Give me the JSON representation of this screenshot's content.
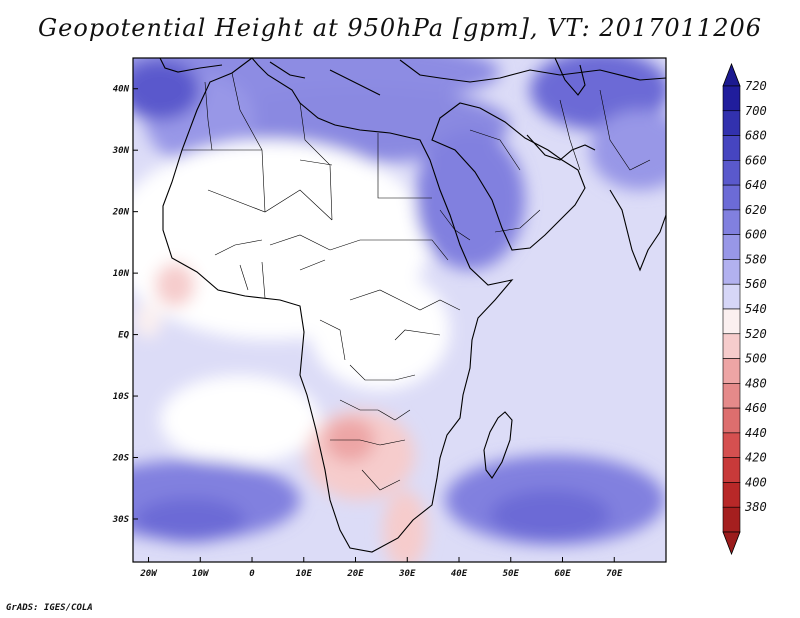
{
  "title": "Geopotential Height at 950hPa [gpm], VT: 2017011206",
  "credit": "GrADS: IGES/COLA",
  "map": {
    "region": "Africa and Middle East",
    "lon_range": [
      -23,
      80
    ],
    "lat_range": [
      -37,
      45
    ],
    "lon_ticks": [
      {
        "value": -20,
        "label": "20W"
      },
      {
        "value": -10,
        "label": "10W"
      },
      {
        "value": 0,
        "label": "0"
      },
      {
        "value": 10,
        "label": "10E"
      },
      {
        "value": 20,
        "label": "20E"
      },
      {
        "value": 30,
        "label": "30E"
      },
      {
        "value": 40,
        "label": "40E"
      },
      {
        "value": 50,
        "label": "50E"
      },
      {
        "value": 60,
        "label": "60E"
      },
      {
        "value": 70,
        "label": "70E"
      }
    ],
    "lat_ticks": [
      {
        "value": 40,
        "label": "40N"
      },
      {
        "value": 30,
        "label": "30N"
      },
      {
        "value": 20,
        "label": "20N"
      },
      {
        "value": 10,
        "label": "10N"
      },
      {
        "value": 0,
        "label": "EQ"
      },
      {
        "value": -10,
        "label": "10S"
      },
      {
        "value": -20,
        "label": "20S"
      },
      {
        "value": -30,
        "label": "30S"
      }
    ],
    "shaded_regions": [
      {
        "name": "low-kalahari",
        "lon": 23,
        "lat": -18,
        "rlon": 8,
        "rlat": 6,
        "level": 500
      },
      {
        "name": "low-mozambique-channel",
        "lon": 33,
        "lat": -28,
        "rlon": 3,
        "rlat": 7,
        "level": 520
      },
      {
        "name": "low-west-africa",
        "lon": -12,
        "lat": 7,
        "rlon": 4,
        "rlat": 4,
        "level": 520
      },
      {
        "name": "high-north-africa",
        "lon": 10,
        "lat": 28,
        "rlon": 30,
        "rlat": 8,
        "level": 600
      },
      {
        "name": "high-arabia",
        "lon": 45,
        "lat": 22,
        "rlon": 10,
        "rlat": 12,
        "level": 620
      },
      {
        "name": "high-iran",
        "lon": 60,
        "lat": 35,
        "rlon": 16,
        "rlat": 9,
        "level": 640
      },
      {
        "name": "high-south-atlantic",
        "lon": -8,
        "lat": -31,
        "rlon": 10,
        "rlat": 4,
        "level": 640
      },
      {
        "name": "high-south-indian",
        "lon": 60,
        "lat": -30,
        "rlon": 12,
        "rlat": 5,
        "level": 640
      }
    ]
  },
  "colorbar": {
    "levels": [
      720,
      700,
      680,
      660,
      640,
      620,
      600,
      580,
      560,
      540,
      520,
      500,
      480,
      460,
      440,
      420,
      400,
      380
    ],
    "colors": [
      "#201d9c",
      "#3231ae",
      "#4645c0",
      "#5a59cc",
      "#6c6bd6",
      "#8180df",
      "#9897e7",
      "#b2b1ef",
      "#d6d6f7",
      "#fbf0f0",
      "#f6cccc",
      "#eda5a5",
      "#e58a8a",
      "#dd6e6e",
      "#d55050",
      "#c83a3a",
      "#b82828",
      "#a51f1f"
    ],
    "top_arrow": "#1c1a90",
    "bottom_arrow": "#9b1c1c"
  }
}
